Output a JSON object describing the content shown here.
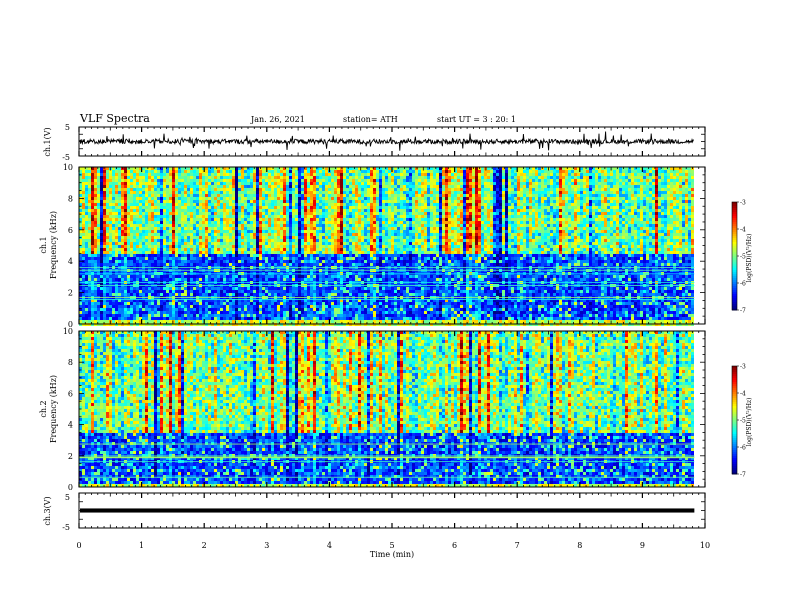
{
  "header": {
    "title": "VLF Spectra",
    "date": "Jan. 26, 2021",
    "station": "station= ATH",
    "start": "start  UT  =   3  : 20: 1"
  },
  "chart_data": {
    "type": "heatmap",
    "xlabel": "Time  (min)",
    "xlim": [
      0,
      10
    ],
    "xticks": [
      "0",
      "1",
      "2",
      "3",
      "4",
      "5",
      "6",
      "7",
      "8",
      "9",
      "10"
    ],
    "panels": [
      {
        "id": "ch1-waveform",
        "type": "line",
        "ylabel": "ch.1(V)",
        "ylim": [
          -5,
          5
        ],
        "yticks": [
          "5",
          "-5"
        ],
        "trace_level_V": 0.0,
        "trace_amplitude_V": 0.8
      },
      {
        "id": "ch1-spectrogram",
        "type": "heatmap",
        "ylabel_line1": "ch.1",
        "ylabel_line2": "Frequency  (kHz)",
        "ylim": [
          0,
          10
        ],
        "yticks": [
          "0",
          "2",
          "4",
          "6",
          "8",
          "10"
        ],
        "colorbar": {
          "label": "log(PSD)(V²/Hz)",
          "range": [
            -7,
            -3
          ],
          "ticks": [
            "-3",
            "-4",
            "-5",
            "-6",
            "-7"
          ]
        },
        "dense_low_band_kHz": [
          0.3,
          4.5
        ],
        "data_end_min": 9.83
      },
      {
        "id": "ch2-spectrogram",
        "type": "heatmap",
        "ylabel_line1": "ch.2",
        "ylabel_line2": "Frequency  (kHz)",
        "ylim": [
          0,
          10
        ],
        "yticks": [
          "0",
          "2",
          "4",
          "6",
          "8",
          "10"
        ],
        "colorbar": {
          "label": "log(PSD)(V²/Hz)",
          "range": [
            -7,
            -3
          ],
          "ticks": [
            "-3",
            "-4",
            "-5",
            "-6",
            "-7"
          ]
        },
        "dense_low_band_kHz": [
          0.3,
          3.5
        ],
        "data_end_min": 9.83
      },
      {
        "id": "ch3-waveform",
        "type": "line",
        "ylabel": "ch.3(V)",
        "ylim": [
          -5,
          5
        ],
        "yticks": [
          "5",
          "-5"
        ],
        "trace_level_V": 0.0,
        "trace_amplitude_V": 0.3
      }
    ]
  }
}
